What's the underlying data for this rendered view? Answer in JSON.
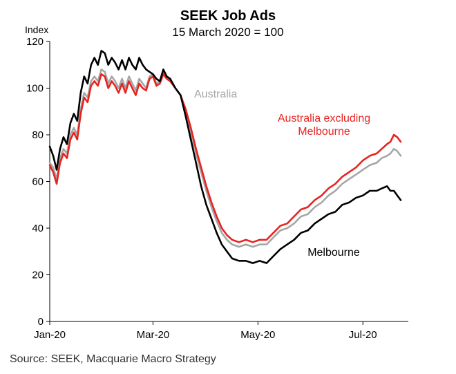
{
  "chart_data": {
    "type": "line",
    "title": "SEEK Job Ads",
    "subtitle": "15 March 2020 = 100",
    "ylabel": "Index",
    "xlabel": "",
    "ylim": [
      0,
      120
    ],
    "yticks": [
      0,
      20,
      40,
      60,
      80,
      100,
      120
    ],
    "xlim": [
      "2020-01-01",
      "2020-07-25"
    ],
    "xticks": [
      {
        "date": "2020-01-01",
        "label": "Jan-20"
      },
      {
        "date": "2020-03-01",
        "label": "Mar-20"
      },
      {
        "date": "2020-05-01",
        "label": "May-20"
      },
      {
        "date": "2020-07-01",
        "label": "Jul-20"
      }
    ],
    "grid": false,
    "legend": "none",
    "series": [
      {
        "name": "Melbourne",
        "color": "#000000",
        "points": [
          [
            "2020-01-01",
            75
          ],
          [
            "2020-01-03",
            71
          ],
          [
            "2020-01-05",
            65
          ],
          [
            "2020-01-07",
            74
          ],
          [
            "2020-01-09",
            79
          ],
          [
            "2020-01-11",
            76
          ],
          [
            "2020-01-13",
            85
          ],
          [
            "2020-01-15",
            89
          ],
          [
            "2020-01-17",
            86
          ],
          [
            "2020-01-19",
            98
          ],
          [
            "2020-01-21",
            105
          ],
          [
            "2020-01-23",
            102
          ],
          [
            "2020-01-25",
            110
          ],
          [
            "2020-01-27",
            113
          ],
          [
            "2020-01-29",
            110
          ],
          [
            "2020-01-31",
            116
          ],
          [
            "2020-02-02",
            115
          ],
          [
            "2020-02-04",
            110
          ],
          [
            "2020-02-06",
            113
          ],
          [
            "2020-02-08",
            111
          ],
          [
            "2020-02-10",
            108
          ],
          [
            "2020-02-12",
            112
          ],
          [
            "2020-02-14",
            108
          ],
          [
            "2020-02-16",
            113
          ],
          [
            "2020-02-18",
            110
          ],
          [
            "2020-02-20",
            108
          ],
          [
            "2020-02-22",
            113
          ],
          [
            "2020-02-24",
            110
          ],
          [
            "2020-02-26",
            108
          ],
          [
            "2020-02-28",
            107
          ],
          [
            "2020-03-01",
            106
          ],
          [
            "2020-03-03",
            104
          ],
          [
            "2020-03-05",
            103
          ],
          [
            "2020-03-07",
            108
          ],
          [
            "2020-03-09",
            105
          ],
          [
            "2020-03-11",
            104
          ],
          [
            "2020-03-14",
            100
          ],
          [
            "2020-03-17",
            97
          ],
          [
            "2020-03-20",
            88
          ],
          [
            "2020-03-23",
            78
          ],
          [
            "2020-03-26",
            68
          ],
          [
            "2020-03-29",
            58
          ],
          [
            "2020-04-01",
            50
          ],
          [
            "2020-04-04",
            44
          ],
          [
            "2020-04-07",
            38
          ],
          [
            "2020-04-10",
            33
          ],
          [
            "2020-04-13",
            30
          ],
          [
            "2020-04-16",
            27
          ],
          [
            "2020-04-20",
            26
          ],
          [
            "2020-04-24",
            26
          ],
          [
            "2020-04-28",
            25
          ],
          [
            "2020-05-02",
            26
          ],
          [
            "2020-05-06",
            25
          ],
          [
            "2020-05-10",
            28
          ],
          [
            "2020-05-14",
            31
          ],
          [
            "2020-05-18",
            33
          ],
          [
            "2020-05-22",
            35
          ],
          [
            "2020-05-26",
            38
          ],
          [
            "2020-05-30",
            39
          ],
          [
            "2020-06-03",
            42
          ],
          [
            "2020-06-07",
            44
          ],
          [
            "2020-06-11",
            46
          ],
          [
            "2020-06-15",
            47
          ],
          [
            "2020-06-19",
            50
          ],
          [
            "2020-06-23",
            51
          ],
          [
            "2020-06-27",
            53
          ],
          [
            "2020-07-01",
            54
          ],
          [
            "2020-07-05",
            56
          ],
          [
            "2020-07-09",
            56
          ],
          [
            "2020-07-12",
            57
          ],
          [
            "2020-07-15",
            58
          ],
          [
            "2020-07-17",
            56
          ],
          [
            "2020-07-19",
            56
          ],
          [
            "2020-07-21",
            54
          ],
          [
            "2020-07-23",
            52
          ]
        ]
      },
      {
        "name": "Australia",
        "color": "#a6a6a6",
        "points": [
          [
            "2020-01-01",
            68
          ],
          [
            "2020-01-03",
            66
          ],
          [
            "2020-01-05",
            61
          ],
          [
            "2020-01-07",
            70
          ],
          [
            "2020-01-09",
            74
          ],
          [
            "2020-01-11",
            72
          ],
          [
            "2020-01-13",
            80
          ],
          [
            "2020-01-15",
            83
          ],
          [
            "2020-01-17",
            80
          ],
          [
            "2020-01-19",
            91
          ],
          [
            "2020-01-21",
            98
          ],
          [
            "2020-01-23",
            96
          ],
          [
            "2020-01-25",
            103
          ],
          [
            "2020-01-27",
            105
          ],
          [
            "2020-01-29",
            103
          ],
          [
            "2020-01-31",
            108
          ],
          [
            "2020-02-02",
            107
          ],
          [
            "2020-02-04",
            102
          ],
          [
            "2020-02-06",
            105
          ],
          [
            "2020-02-08",
            103
          ],
          [
            "2020-02-10",
            100
          ],
          [
            "2020-02-12",
            104
          ],
          [
            "2020-02-14",
            100
          ],
          [
            "2020-02-16",
            105
          ],
          [
            "2020-02-18",
            102
          ],
          [
            "2020-02-20",
            99
          ],
          [
            "2020-02-22",
            104
          ],
          [
            "2020-02-24",
            102
          ],
          [
            "2020-02-26",
            100
          ],
          [
            "2020-02-28",
            105
          ],
          [
            "2020-03-01",
            106
          ],
          [
            "2020-03-03",
            102
          ],
          [
            "2020-03-05",
            103
          ],
          [
            "2020-03-07",
            107
          ],
          [
            "2020-03-09",
            105
          ],
          [
            "2020-03-11",
            104
          ],
          [
            "2020-03-14",
            100
          ],
          [
            "2020-03-17",
            97
          ],
          [
            "2020-03-20",
            90
          ],
          [
            "2020-03-23",
            81
          ],
          [
            "2020-03-26",
            72
          ],
          [
            "2020-03-29",
            64
          ],
          [
            "2020-04-01",
            56
          ],
          [
            "2020-04-04",
            49
          ],
          [
            "2020-04-07",
            43
          ],
          [
            "2020-04-10",
            38
          ],
          [
            "2020-04-13",
            35
          ],
          [
            "2020-04-16",
            33
          ],
          [
            "2020-04-20",
            32
          ],
          [
            "2020-04-24",
            33
          ],
          [
            "2020-04-28",
            32
          ],
          [
            "2020-05-02",
            33
          ],
          [
            "2020-05-06",
            33
          ],
          [
            "2020-05-10",
            36
          ],
          [
            "2020-05-14",
            39
          ],
          [
            "2020-05-18",
            40
          ],
          [
            "2020-05-22",
            42
          ],
          [
            "2020-05-26",
            45
          ],
          [
            "2020-05-30",
            46
          ],
          [
            "2020-06-03",
            49
          ],
          [
            "2020-06-07",
            51
          ],
          [
            "2020-06-11",
            54
          ],
          [
            "2020-06-15",
            56
          ],
          [
            "2020-06-19",
            59
          ],
          [
            "2020-06-23",
            61
          ],
          [
            "2020-06-27",
            63
          ],
          [
            "2020-07-01",
            65
          ],
          [
            "2020-07-05",
            67
          ],
          [
            "2020-07-09",
            68
          ],
          [
            "2020-07-12",
            70
          ],
          [
            "2020-07-15",
            71
          ],
          [
            "2020-07-17",
            72
          ],
          [
            "2020-07-19",
            74
          ],
          [
            "2020-07-21",
            73
          ],
          [
            "2020-07-23",
            71
          ]
        ]
      },
      {
        "name": "Australia excluding Melbourne",
        "color": "#e8231f",
        "points": [
          [
            "2020-01-01",
            67
          ],
          [
            "2020-01-03",
            64
          ],
          [
            "2020-01-05",
            59
          ],
          [
            "2020-01-07",
            68
          ],
          [
            "2020-01-09",
            72
          ],
          [
            "2020-01-11",
            70
          ],
          [
            "2020-01-13",
            78
          ],
          [
            "2020-01-15",
            81
          ],
          [
            "2020-01-17",
            78
          ],
          [
            "2020-01-19",
            89
          ],
          [
            "2020-01-21",
            96
          ],
          [
            "2020-01-23",
            94
          ],
          [
            "2020-01-25",
            101
          ],
          [
            "2020-01-27",
            103
          ],
          [
            "2020-01-29",
            101
          ],
          [
            "2020-01-31",
            106
          ],
          [
            "2020-02-02",
            105
          ],
          [
            "2020-02-04",
            100
          ],
          [
            "2020-02-06",
            103
          ],
          [
            "2020-02-08",
            101
          ],
          [
            "2020-02-10",
            98
          ],
          [
            "2020-02-12",
            102
          ],
          [
            "2020-02-14",
            98
          ],
          [
            "2020-02-16",
            103
          ],
          [
            "2020-02-18",
            100
          ],
          [
            "2020-02-20",
            97
          ],
          [
            "2020-02-22",
            102
          ],
          [
            "2020-02-24",
            100
          ],
          [
            "2020-02-26",
            99
          ],
          [
            "2020-02-28",
            104
          ],
          [
            "2020-03-01",
            105
          ],
          [
            "2020-03-03",
            101
          ],
          [
            "2020-03-05",
            102
          ],
          [
            "2020-03-07",
            106
          ],
          [
            "2020-03-09",
            104
          ],
          [
            "2020-03-11",
            103
          ],
          [
            "2020-03-14",
            100
          ],
          [
            "2020-03-17",
            97
          ],
          [
            "2020-03-20",
            91
          ],
          [
            "2020-03-23",
            83
          ],
          [
            "2020-03-26",
            74
          ],
          [
            "2020-03-29",
            66
          ],
          [
            "2020-04-01",
            58
          ],
          [
            "2020-04-04",
            51
          ],
          [
            "2020-04-07",
            45
          ],
          [
            "2020-04-10",
            40
          ],
          [
            "2020-04-13",
            37
          ],
          [
            "2020-04-16",
            35
          ],
          [
            "2020-04-20",
            34
          ],
          [
            "2020-04-24",
            35
          ],
          [
            "2020-04-28",
            34
          ],
          [
            "2020-05-02",
            35
          ],
          [
            "2020-05-06",
            35
          ],
          [
            "2020-05-10",
            38
          ],
          [
            "2020-05-14",
            41
          ],
          [
            "2020-05-18",
            42
          ],
          [
            "2020-05-22",
            45
          ],
          [
            "2020-05-26",
            48
          ],
          [
            "2020-05-30",
            49
          ],
          [
            "2020-06-03",
            52
          ],
          [
            "2020-06-07",
            54
          ],
          [
            "2020-06-11",
            57
          ],
          [
            "2020-06-15",
            59
          ],
          [
            "2020-06-19",
            62
          ],
          [
            "2020-06-23",
            64
          ],
          [
            "2020-06-27",
            66
          ],
          [
            "2020-07-01",
            69
          ],
          [
            "2020-07-05",
            71
          ],
          [
            "2020-07-09",
            72
          ],
          [
            "2020-07-12",
            74
          ],
          [
            "2020-07-15",
            76
          ],
          [
            "2020-07-17",
            77
          ],
          [
            "2020-07-19",
            80
          ],
          [
            "2020-07-21",
            79
          ],
          [
            "2020-07-23",
            77
          ]
        ]
      }
    ],
    "annotations": [
      {
        "text": "Australia",
        "color": "#a6a6a6",
        "lines": [
          "Australia"
        ]
      },
      {
        "text": "Australia excluding Melbourne",
        "color": "#e8231f",
        "lines": [
          "Australia excluding",
          "Melbourne"
        ]
      },
      {
        "text": "Melbourne",
        "color": "#000000",
        "lines": [
          "Melbourne"
        ]
      }
    ],
    "source": "Source: SEEK, Macquarie Macro Strategy"
  }
}
